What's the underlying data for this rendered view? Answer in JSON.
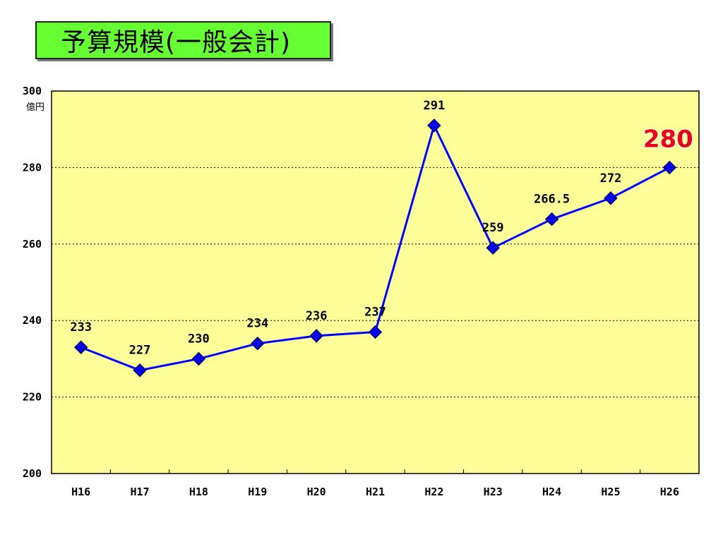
{
  "title": "予算規模(一般会計)",
  "chart_data": {
    "type": "line",
    "title": "予算規模(一般会計)",
    "categories": [
      "H16",
      "H17",
      "H18",
      "H19",
      "H20",
      "H21",
      "H22",
      "H23",
      "H24",
      "H25",
      "H26"
    ],
    "values": [
      233,
      227,
      230,
      234,
      236,
      237,
      291,
      259,
      266.5,
      272,
      280
    ],
    "data_labels": [
      "233",
      "227",
      "230",
      "234",
      "236",
      "237",
      "291",
      "259",
      "266.5",
      "272",
      "280"
    ],
    "ylim": [
      200,
      300
    ],
    "yticks": [
      "200",
      "220",
      "240",
      "260",
      "280",
      "300"
    ],
    "y_unit": "億円",
    "xlabel": "",
    "ylabel": "",
    "grid": true,
    "legend": "none",
    "colors": {
      "plot_background": "#ffff99",
      "line": "#0000ff",
      "marker": "#0000ee",
      "highlight_label": "#e8001c",
      "title_background": "#66ff33"
    }
  }
}
